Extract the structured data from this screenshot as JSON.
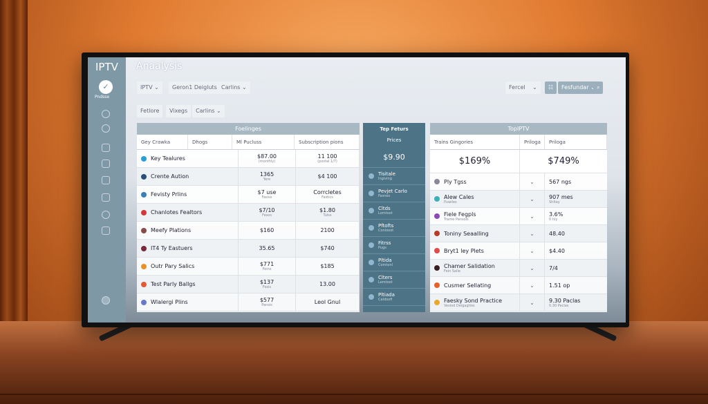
{
  "app": {
    "logo": "IPTV",
    "title": "Anaalysis",
    "sidebar_label": "Pndsse"
  },
  "filters1": [
    "IPTV ⌄",
    "Geron1 Deigluts",
    "Carlins ⌄"
  ],
  "filters2": [
    "Fetlore",
    "Vixegs",
    "Carlins ⌄"
  ],
  "toolbar": {
    "select": "Fercel",
    "chevron": "⌄",
    "grid": "☷",
    "features": "Fesfundar ⌄",
    "search": "⌕"
  },
  "left_table": {
    "header": "Foelinges",
    "columns": [
      "Gey Crawka",
      "Dhogs",
      "Ml Pucluss",
      "Subscription pions"
    ],
    "rows": [
      {
        "name": "Key Tealures",
        "icon_color": "#2a9fd6",
        "v1": "$87.00",
        "s1": "(monthly)",
        "v2": "11 100",
        "s2": "(postal 1/7)"
      },
      {
        "name": "Crente Aution",
        "icon_color": "#2c4f78",
        "v1": "1365",
        "s1": "Yere",
        "v2": "$4 100",
        "s2": ""
      },
      {
        "name": "Fevisty Prlins",
        "icon_color": "#3a7fb8",
        "v1": "$7 use",
        "s1": "Fasiss",
        "v2": "Corrcletes",
        "s2": "Fastics"
      },
      {
        "name": "Chanlotes Fealtors",
        "icon_color": "#d23a3a",
        "v1": "$7/10",
        "s1": "Fesos",
        "v2": "$1.80",
        "s2": "Tulss"
      },
      {
        "name": "Meefy Plations",
        "icon_color": "#8a4a4a",
        "v1": "$160",
        "s1": "",
        "v2": "2100",
        "s2": ""
      },
      {
        "name": "IT4 Ty Eastuers",
        "icon_color": "#7a2a3a",
        "v1": "35.65",
        "s1": "",
        "v2": "$740",
        "s2": ""
      },
      {
        "name": "Outr Pary Salics",
        "icon_color": "#e8922a",
        "v1": "$771",
        "s1": "Feins",
        "v2": "$185",
        "s2": ""
      },
      {
        "name": "Test Parly Ballgs",
        "icon_color": "#e05a3a",
        "v1": "$137",
        "s1": "Fesis",
        "v2": "13.00",
        "s2": ""
      },
      {
        "name": "Wlalergi Plins",
        "icon_color": "#6a7ac8",
        "v1": "$577",
        "s1": "Pansis",
        "v2": "Leol Gnul",
        "s2": ""
      }
    ]
  },
  "middle": {
    "title": "Tep Feturs",
    "subtitle": "Prices",
    "value": "$9.90",
    "items": [
      {
        "t": "Tisitale",
        "s": "Ingiving",
        "icon": "arrow-up"
      },
      {
        "t": "Pevjet Carlo",
        "s": "Fasnex",
        "icon": ""
      },
      {
        "t": "Cltds",
        "s": "Lomtoot",
        "icon": "at"
      },
      {
        "t": "Pftofts",
        "s": "Conlooot",
        "icon": "circle"
      },
      {
        "t": "Fitrss",
        "s": "Pugs",
        "icon": "circle"
      },
      {
        "t": "Pltida",
        "s": "Comtonl",
        "icon": "cloud"
      },
      {
        "t": "Clters",
        "s": "Lemtoot",
        "icon": "circle"
      },
      {
        "t": "Pltiada",
        "s": "Caldoofi",
        "icon": "grid"
      }
    ]
  },
  "right_table": {
    "header": "TopIPTV",
    "columns": [
      "Trains Gingories",
      "Priloga",
      "Priloga"
    ],
    "big": [
      "$169%",
      "$749%"
    ],
    "rows": [
      {
        "name": "Ply Tgss",
        "sub": "",
        "icon_color": "#889",
        "v": "567 ngs",
        "vs": ""
      },
      {
        "name": "Alew Cales",
        "sub": "Puwiles",
        "icon_color": "#3ab0b8",
        "v": "907 mes",
        "vs": "Shltay"
      },
      {
        "name": "Fiele Fegpls",
        "sub": "Trame Pansols",
        "icon_color": "#8a4ab8",
        "v": "3.6%",
        "vs": "0 hly"
      },
      {
        "name": "Toniny Seaalling",
        "sub": "",
        "icon_color": "#b83a2a",
        "v": "48.40",
        "vs": ""
      },
      {
        "name": "Bryt1 ley Plets",
        "sub": "",
        "icon_color": "#e04a4a",
        "v": "$4.40",
        "vs": ""
      },
      {
        "name": "Chamer Salidation",
        "sub": "Fein Salle",
        "icon_color": "#3a2020",
        "v": "7/4",
        "vs": ""
      },
      {
        "name": "Cusmer Sellating",
        "sub": "",
        "icon_color": "#e8602a",
        "v": "1.51 op",
        "vs": ""
      },
      {
        "name": "Faesky Sond Practice",
        "sub": "Vesiod Deigagtios",
        "icon_color": "#e8a82a",
        "v": "9.30 Paclas",
        "vs": "0.30 Paclas"
      }
    ]
  }
}
